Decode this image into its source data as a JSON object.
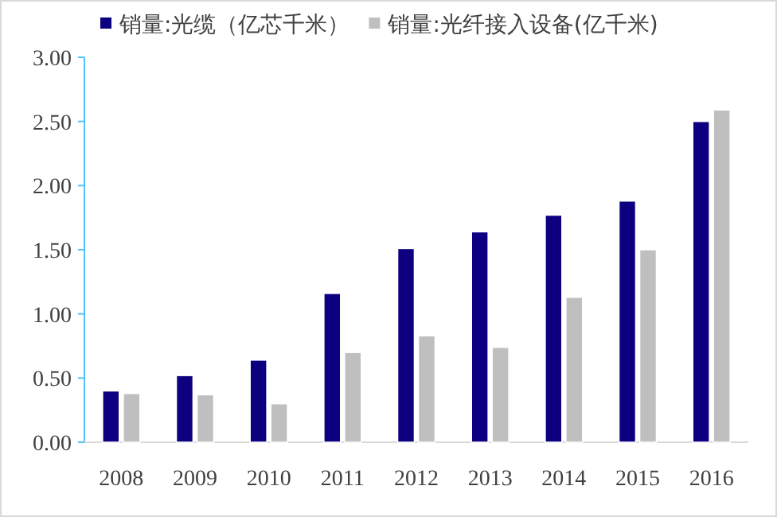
{
  "chart_data": {
    "type": "bar",
    "categories": [
      "2008",
      "2009",
      "2010",
      "2011",
      "2012",
      "2013",
      "2014",
      "2015",
      "2016"
    ],
    "series": [
      {
        "name": "销量:光缆（亿芯千米）",
        "color": "#0d0080",
        "values": [
          0.4,
          0.52,
          0.64,
          1.16,
          1.51,
          1.64,
          1.77,
          1.88,
          2.5
        ]
      },
      {
        "name": "销量:光纤接入设备(亿千米)",
        "color": "#bfbfbf",
        "values": [
          0.38,
          0.37,
          0.3,
          0.7,
          0.83,
          0.74,
          1.13,
          1.5,
          2.59
        ]
      }
    ],
    "ylim": [
      0,
      3
    ],
    "yticks": [
      {
        "value": 0,
        "label": "0.00"
      },
      {
        "value": 0.5,
        "label": "0.50"
      },
      {
        "value": 1,
        "label": "1.00"
      },
      {
        "value": 1.5,
        "label": "1.50"
      },
      {
        "value": 2,
        "label": "2.00"
      },
      {
        "value": 2.5,
        "label": "2.50"
      },
      {
        "value": 3,
        "label": "3.00"
      }
    ],
    "legend": "top",
    "grid": false
  }
}
